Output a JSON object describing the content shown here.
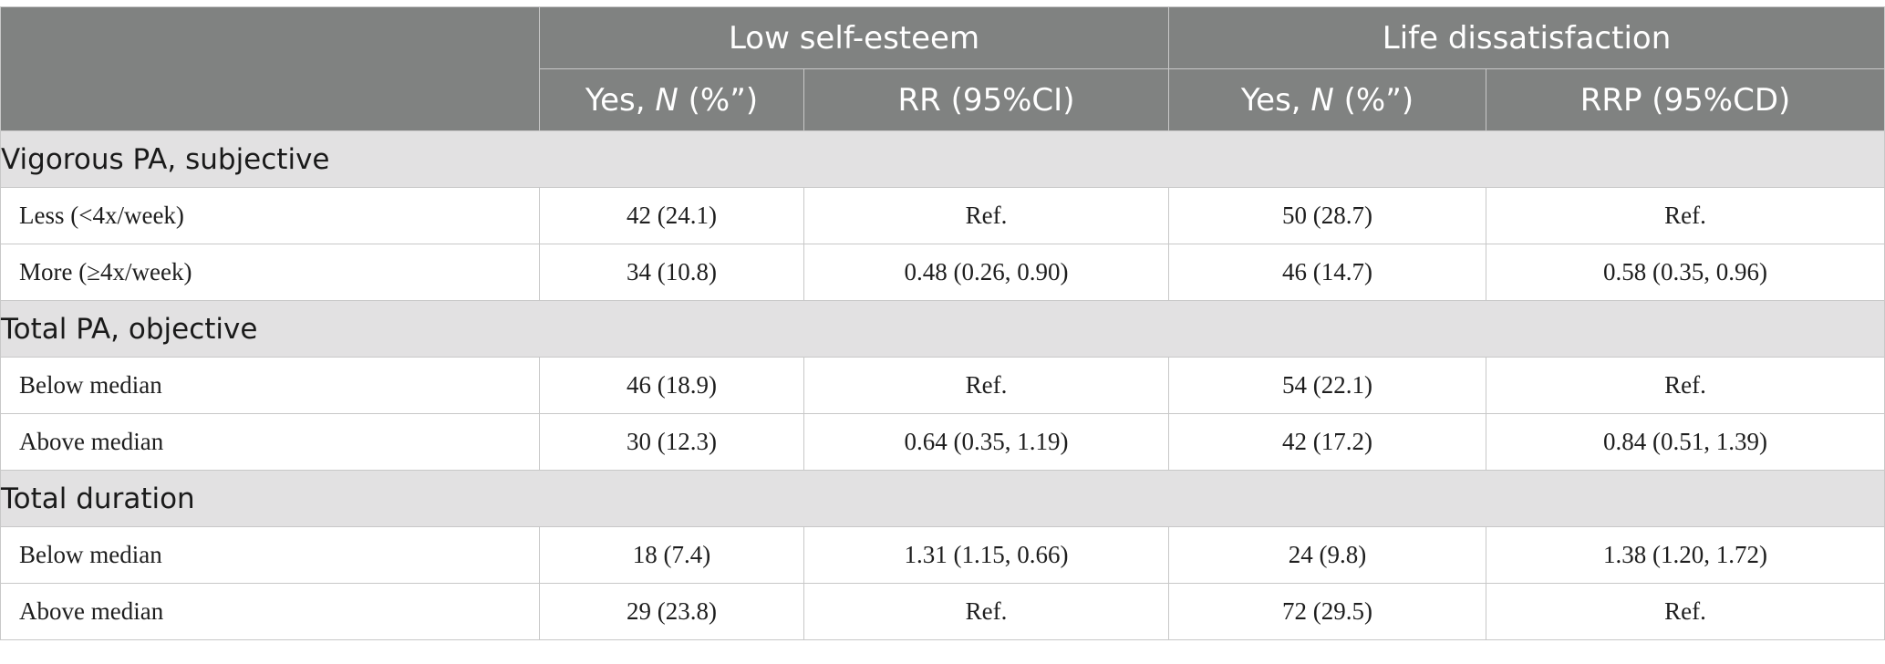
{
  "header": {
    "group_low_self_esteem": "Low self-esteem",
    "group_life_dissatisfaction": "Life dissatisfaction",
    "yes_prefix": "Yes, ",
    "n_symbol": "N",
    "pct_suffix": " (%”)",
    "rr_label": "RR (95%CI)",
    "rrp_label": "RRP (95%CD)"
  },
  "sections": [
    {
      "title": "Vigorous PA, subjective",
      "rows": [
        {
          "label": "Less (<4x/week)",
          "lse_yes": "42 (24.1)",
          "lse_rr": "Ref.",
          "ld_yes": "50 (28.7)",
          "ld_rr": "Ref."
        },
        {
          "label": "More (≥4x/week)",
          "lse_yes": "34 (10.8)",
          "lse_rr": "0.48 (0.26, 0.90)",
          "ld_yes": "46 (14.7)",
          "ld_rr": "0.58 (0.35, 0.96)"
        }
      ]
    },
    {
      "title": "Total PA, objective",
      "rows": [
        {
          "label": "Below median",
          "lse_yes": "46 (18.9)",
          "lse_rr": "Ref.",
          "ld_yes": "54 (22.1)",
          "ld_rr": "Ref."
        },
        {
          "label": "Above median",
          "lse_yes": "30 (12.3)",
          "lse_rr": "0.64 (0.35, 1.19)",
          "ld_yes": "42 (17.2)",
          "ld_rr": "0.84 (0.51, 1.39)"
        }
      ]
    },
    {
      "title": "Total duration",
      "rows": [
        {
          "label": "Below median",
          "lse_yes": "18 (7.4)",
          "lse_rr": "1.31 (1.15, 0.66)",
          "ld_yes": "24 (9.8)",
          "ld_rr": "1.38 (1.20, 1.72)"
        },
        {
          "label": "Above median",
          "lse_yes": "29 (23.8)",
          "lse_rr": "Ref.",
          "ld_yes": "72 (29.5)",
          "ld_rr": "Ref."
        }
      ]
    }
  ]
}
